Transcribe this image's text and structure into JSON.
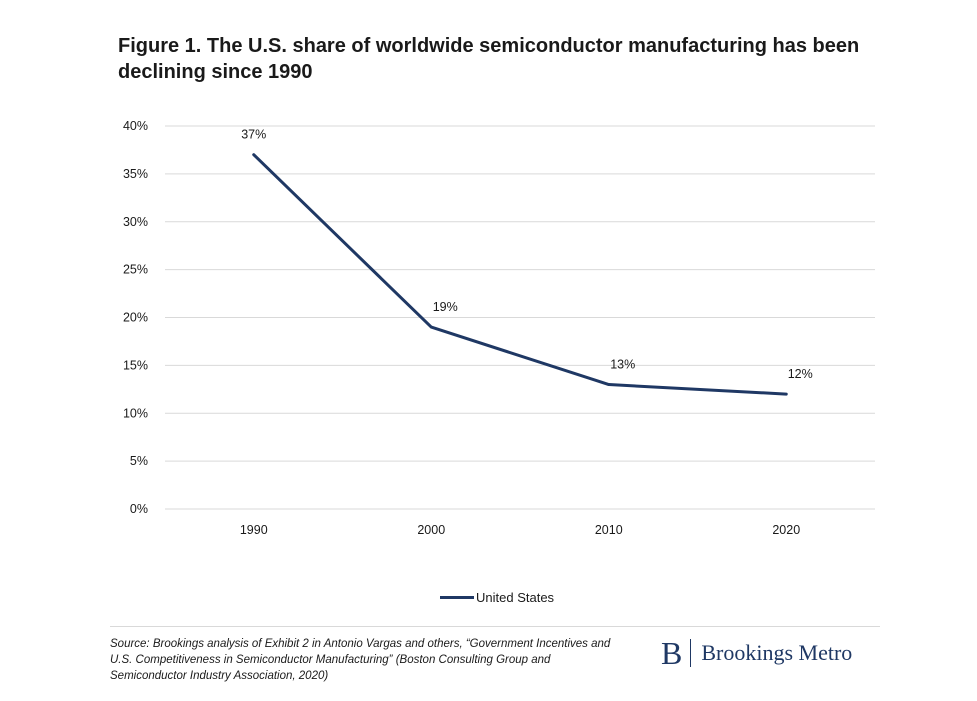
{
  "title": "Figure 1. The U.S. share of worldwide semiconductor manufacturing has been declining since 1990",
  "source": "Source: Brookings analysis of Exhibit 2 in Antonio Vargas and others, “Government Incentives and U.S. Competitiveness in Semiconductor Manufacturing” (Boston Consulting Group and Semiconductor Industry Association, 2020)",
  "brand": {
    "mark": "B",
    "name": "Brookings Metro"
  },
  "chart_data": {
    "type": "line",
    "title": "Figure 1. The U.S. share of worldwide semiconductor manufacturing has been declining since 1990",
    "xlabel": "",
    "ylabel": "",
    "categories": [
      "1990",
      "2000",
      "2010",
      "2020"
    ],
    "series": [
      {
        "name": "United States",
        "values": [
          37,
          19,
          13,
          12
        ],
        "labels": [
          "37%",
          "19%",
          "13%",
          "12%"
        ],
        "color": "#1f3864"
      }
    ],
    "ylim": [
      0,
      40
    ],
    "yticks": [
      0,
      5,
      10,
      15,
      20,
      25,
      30,
      35,
      40
    ],
    "ytick_labels": [
      "0%",
      "5%",
      "10%",
      "15%",
      "20%",
      "25%",
      "30%",
      "35%",
      "40%"
    ],
    "grid": true,
    "grid_color": "#d9d9d9",
    "legend_position": "bottom"
  }
}
